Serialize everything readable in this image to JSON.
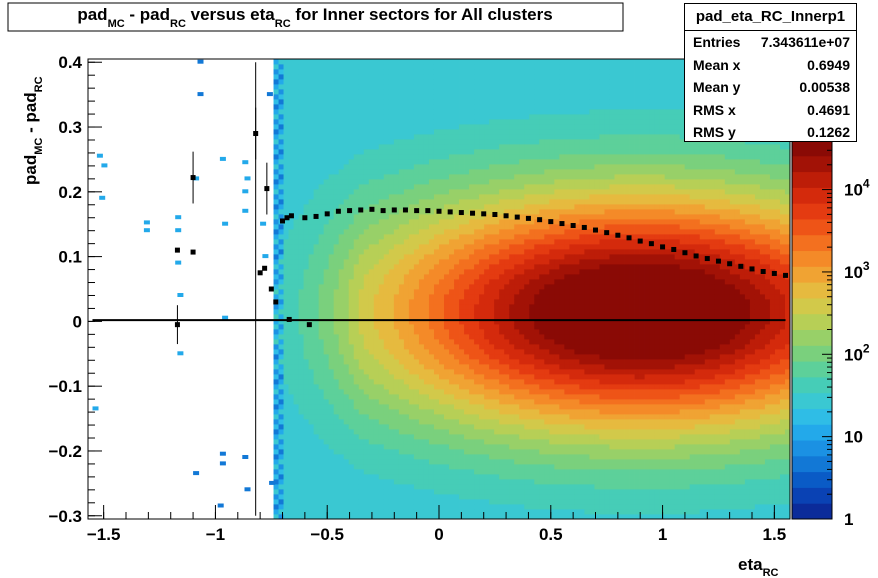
{
  "chart_data": {
    "type": "heatmap",
    "title": {
      "parts": [
        "pad",
        "MC",
        " - pad",
        "RC",
        " versus eta",
        "RC",
        " for Inner sectors for All clusters"
      ]
    },
    "xlabel": {
      "main": "eta",
      "sub": "RC"
    },
    "ylabel": {
      "parts": [
        "pad",
        "MC",
        " - pad",
        "RC"
      ]
    },
    "xlim": [
      -1.57,
      1.57
    ],
    "ylim": [
      -0.305,
      0.405
    ],
    "x_ticks": [
      {
        "value": -1.5,
        "label": "−1.5"
      },
      {
        "value": -1.0,
        "label": "−1"
      },
      {
        "value": -0.5,
        "label": "−0.5"
      },
      {
        "value": 0,
        "label": "0"
      },
      {
        "value": 0.5,
        "label": "0.5"
      },
      {
        "value": 1.0,
        "label": "1"
      },
      {
        "value": 1.5,
        "label": "1.5"
      }
    ],
    "y_ticks": [
      {
        "value": -0.3,
        "label": "−0.3"
      },
      {
        "value": -0.2,
        "label": "−0.2"
      },
      {
        "value": -0.1,
        "label": "−0.1"
      },
      {
        "value": 0,
        "label": "0"
      },
      {
        "value": 0.1,
        "label": "0.1"
      },
      {
        "value": 0.2,
        "label": "0.2"
      },
      {
        "value": 0.3,
        "label": "0.3"
      },
      {
        "value": 0.4,
        "label": "0.4"
      }
    ],
    "z_scale": "log",
    "zlim": [
      1,
      40000
    ],
    "z_ticks": [
      {
        "value": 1,
        "label": "1"
      },
      {
        "value": 10,
        "label": "10"
      },
      {
        "value": 100,
        "label": "10",
        "exp": "2"
      },
      {
        "value": 1000,
        "label": "10",
        "exp": "3"
      },
      {
        "value": 10000,
        "label": "10",
        "exp": "4"
      }
    ],
    "palette": [
      "#0b2b9a",
      "#0a42b4",
      "#0a5bc6",
      "#1278d6",
      "#1b91e3",
      "#23a9ea",
      "#2fbde6",
      "#3ac8d2",
      "#46cdb7",
      "#5dd09a",
      "#7ad07d",
      "#98d068",
      "#b7cf56",
      "#d2c94a",
      "#e6ba3f",
      "#f0a333",
      "#f48a28",
      "#f3701f",
      "#ee5417",
      "#e43b11",
      "#d42a0c",
      "#bd1d08",
      "#a21206",
      "#8a0a05"
    ],
    "profile_mean": [
      {
        "x": -1.17,
        "y": 0.11
      },
      {
        "x": -1.1,
        "y": 0.107
      },
      {
        "x": -0.8,
        "y": 0.075
      },
      {
        "x": -0.78,
        "y": 0.082
      },
      {
        "x": -0.75,
        "y": 0.05
      },
      {
        "x": -0.73,
        "y": 0.03
      },
      {
        "x": -0.7,
        "y": 0.155
      },
      {
        "x": -0.68,
        "y": 0.16
      },
      {
        "x": -0.66,
        "y": 0.163
      },
      {
        "x": -0.6,
        "y": 0.16
      },
      {
        "x": -0.55,
        "y": 0.162
      },
      {
        "x": -0.5,
        "y": 0.166
      },
      {
        "x": -0.45,
        "y": 0.17
      },
      {
        "x": -0.4,
        "y": 0.171
      },
      {
        "x": -0.35,
        "y": 0.172
      },
      {
        "x": -0.3,
        "y": 0.173
      },
      {
        "x": -0.25,
        "y": 0.171
      },
      {
        "x": -0.2,
        "y": 0.172
      },
      {
        "x": -0.15,
        "y": 0.172
      },
      {
        "x": -0.1,
        "y": 0.171
      },
      {
        "x": -0.05,
        "y": 0.171
      },
      {
        "x": 0,
        "y": 0.17
      },
      {
        "x": 0.05,
        "y": 0.169
      },
      {
        "x": 0.1,
        "y": 0.168
      },
      {
        "x": 0.15,
        "y": 0.167
      },
      {
        "x": 0.2,
        "y": 0.166
      },
      {
        "x": 0.25,
        "y": 0.165
      },
      {
        "x": 0.3,
        "y": 0.163
      },
      {
        "x": 0.35,
        "y": 0.161
      },
      {
        "x": 0.4,
        "y": 0.159
      },
      {
        "x": 0.45,
        "y": 0.157
      },
      {
        "x": 0.5,
        "y": 0.154
      },
      {
        "x": 0.55,
        "y": 0.151
      },
      {
        "x": 0.6,
        "y": 0.148
      },
      {
        "x": 0.65,
        "y": 0.145
      },
      {
        "x": 0.7,
        "y": 0.141
      },
      {
        "x": 0.75,
        "y": 0.137
      },
      {
        "x": 0.8,
        "y": 0.133
      },
      {
        "x": 0.85,
        "y": 0.129
      },
      {
        "x": 0.9,
        "y": 0.124
      },
      {
        "x": 0.95,
        "y": 0.12
      },
      {
        "x": 1.0,
        "y": 0.115
      },
      {
        "x": 1.05,
        "y": 0.111
      },
      {
        "x": 1.1,
        "y": 0.106
      },
      {
        "x": 1.15,
        "y": 0.101
      },
      {
        "x": 1.2,
        "y": 0.097
      },
      {
        "x": 1.25,
        "y": 0.093
      },
      {
        "x": 1.3,
        "y": 0.089
      },
      {
        "x": 1.35,
        "y": 0.085
      },
      {
        "x": 1.4,
        "y": 0.081
      },
      {
        "x": 1.45,
        "y": 0.077
      },
      {
        "x": 1.5,
        "y": 0.074
      },
      {
        "x": 1.55,
        "y": 0.071
      }
    ],
    "profile_outliers": [
      {
        "x": -1.1,
        "y": 0.222,
        "err": 0.04
      },
      {
        "x": -0.82,
        "y": 0.29,
        "err": 0.04
      },
      {
        "x": -0.77,
        "y": 0.205,
        "err": 0.04
      },
      {
        "x": -1.17,
        "y": -0.005,
        "err": 0.03
      },
      {
        "x": -0.58,
        "y": -0.005,
        "err": 0
      },
      {
        "x": -0.67,
        "y": 0.003,
        "err": 0
      }
    ],
    "profile_zero": {
      "x0": -1.55,
      "x1": 1.55,
      "y": 0.002
    },
    "stats": {
      "name": "pad_eta_RC_Innerp1",
      "rows": [
        {
          "label": "Entries",
          "value": "7.343611e+07"
        },
        {
          "label": "Mean x",
          "value": "0.6949"
        },
        {
          "label": "Mean y",
          "value": "0.00538"
        },
        {
          "label": "RMS x",
          "value": "0.4691"
        },
        {
          "label": "RMS y",
          "value": "0.1262"
        }
      ]
    }
  }
}
